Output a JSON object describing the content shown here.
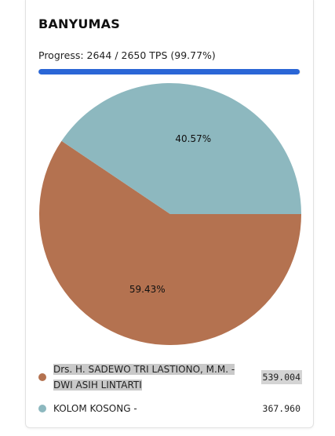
{
  "card": {
    "title": "BANYUMAS",
    "progress_label": "Progress: 2644 / 2650 TPS (99.77%)",
    "progress_fraction": 0.9977
  },
  "chart_data": {
    "type": "pie",
    "categories": [
      "Drs. H. SADEWO TRI LASTIONO, M.M. - DWI ASIH LINTARTI",
      "KOLOM KOSONG -"
    ],
    "values": [
      59.43,
      40.57
    ],
    "labels": [
      "59.43%",
      "40.57%"
    ],
    "colors": [
      "#b47250",
      "#8db8bf"
    ]
  },
  "legend": [
    {
      "line1": "Drs. H. SADEWO TRI LASTIONO, M.M. -",
      "line2": "DWI ASIH LINTARTI",
      "value": "539.004",
      "color": "#b47250"
    },
    {
      "line1": "KOLOM KOSONG -",
      "line2": "",
      "value": "367.960",
      "color": "#8db8bf"
    }
  ]
}
